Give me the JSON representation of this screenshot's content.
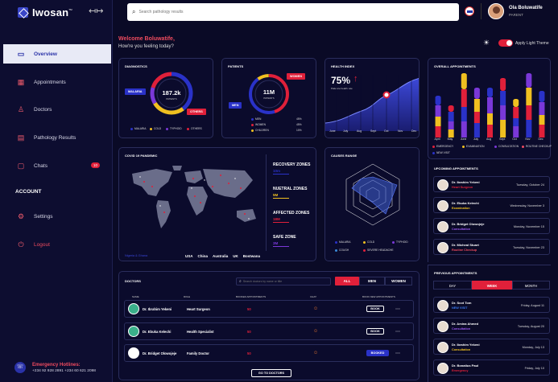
{
  "app": {
    "name": "Iwosan",
    "tm": "TM"
  },
  "nav": {
    "items": [
      {
        "label": "Overview",
        "icon": "overview-icon",
        "glyph": "▭"
      },
      {
        "label": "Appointments",
        "icon": "calendar-icon",
        "glyph": "▦"
      },
      {
        "label": "Doctors",
        "icon": "person-icon",
        "glyph": "♙"
      },
      {
        "label": "Pathology Results",
        "icon": "report-icon",
        "glyph": "▤"
      },
      {
        "label": "Chats",
        "icon": "chat-icon",
        "glyph": "▢",
        "badge": "10"
      }
    ],
    "account_label": "ACCOUNT",
    "settings": "Settings",
    "logout": "Logout"
  },
  "emergency": {
    "title": "Emergency Hotlines:",
    "numbers": "+234 92 928 2891   +234 60 621 2098"
  },
  "search": {
    "placeholder": "Search pathology results"
  },
  "user": {
    "name": "Ola Boluwatife",
    "role": "PARENT"
  },
  "greeting": {
    "welcome": "Welcome Boluwatife,",
    "sub": "How're you feeling today?"
  },
  "theme": {
    "label": "Apply Light Theme"
  },
  "diagnostics": {
    "title": "DIAGNOSTICS",
    "center_value": "187.2k",
    "center_label": "PATIENTS",
    "tag_left": "MALARIA",
    "tag_right": "OTHERS",
    "legend": [
      "MALARIA",
      "COLD",
      "TYPHOID",
      "OTHERS"
    ]
  },
  "patients": {
    "title": "PATIENTS",
    "center_value": "11M",
    "center_label": "PATIENTS",
    "tag_women": "WOMEN",
    "tag_men": "MEN",
    "legend": [
      {
        "label": "MEN",
        "pct": "45%"
      },
      {
        "label": "WOMEN",
        "pct": "45%"
      },
      {
        "label": "CHILDREN",
        "pct": "10%"
      }
    ]
  },
  "health": {
    "title": "HEALTH INDEX",
    "value": "75%",
    "sub": "Patience health rate",
    "months": [
      "June",
      "July",
      "Aug",
      "Sept",
      "Oct",
      "Nov",
      "Dec"
    ]
  },
  "overall": {
    "title": "OVERALL APPOINTMENTS",
    "months": [
      "April",
      "May",
      "June",
      "July",
      "Aug",
      "Sept",
      "Oct",
      "Nov",
      "Dec"
    ],
    "legend": [
      "EMERGENCY",
      "EXAMINATION",
      "CONSULTATION",
      "ROUTINE CHECKUP",
      "NEW VISIT"
    ]
  },
  "covid": {
    "title": "COVID 19 PANDEMIC",
    "stats": [
      {
        "label": "RECOVERY ZONES",
        "value": "10m"
      },
      {
        "label": "NUETRAL ZONES",
        "value": "5M"
      },
      {
        "label": "AFFECTED ZONES",
        "value": "18M"
      },
      {
        "label": "SAFE ZONE",
        "value": "3M"
      }
    ],
    "countries": [
      "USA",
      "China",
      "Australia",
      "UK",
      "Bostwana"
    ],
    "highlight": "Nigeria & Ghana"
  },
  "causes": {
    "title": "CAUSES RANGE",
    "legend": [
      "MALARIA",
      "COLD",
      "TYPHOID",
      "COUGH",
      "SEVERE HEADACHE"
    ]
  },
  "doctors": {
    "title": "DOCTORS",
    "search_placeholder": "Search doctors by name or title",
    "tabs": [
      "ALL",
      "MEN",
      "WOMEN"
    ],
    "headers": [
      "NAME",
      "ROLE",
      "BOOKED APPOINTMENTS",
      "CHAT",
      "BOOK NEW APPOINTMENTS"
    ],
    "rows": [
      {
        "name": "Dr. Ibrahim Yekeni",
        "role": "Heart Surgeon",
        "booked": "50",
        "action": "BOOK"
      },
      {
        "name": "Dr. Ebuka Kelechi",
        "role": "Health Specialist",
        "booked": "50",
        "action": "BOOK"
      },
      {
        "name": "Dr. Bridget Olowojeje",
        "role": "Family Doctor",
        "booked": "50",
        "action": "BOOKED"
      }
    ],
    "go_to": "GO TO DOCTORS"
  },
  "upcoming": {
    "title": "UPCOMING APPOINTMENTS",
    "items": [
      {
        "name": "Dr. Ibrahim Yekeni",
        "spec": "Heart Surgeon",
        "date": "Tuesday, October 24"
      },
      {
        "name": "Dr. Ebuka Kelechi",
        "spec": "Examination",
        "date": "Wednesday, November 3"
      },
      {
        "name": "Dr. Bridget Olowojeje",
        "spec": "Consultation",
        "date": "Monday, November 15"
      },
      {
        "name": "Dr. Micheal Stuart",
        "spec": "Routine Checkup",
        "date": "Tuesday, November 23"
      }
    ]
  },
  "previous": {
    "title": "PREVIOUS APPOINTMENTS",
    "tabs": [
      "DAY",
      "WEEK",
      "MONTH"
    ],
    "items": [
      {
        "name": "Dr. Scot Tom",
        "spec": "NEW VISIT",
        "date": "Friday, August 11"
      },
      {
        "name": "Dr. Amina Ahmed",
        "spec": "Consultation",
        "date": "Tuesday, August 20"
      },
      {
        "name": "Dr. Ibrahim Yekeni",
        "spec": "Consultation",
        "date": "Monday, July 13"
      },
      {
        "name": "Dr. Bonatius Paul",
        "spec": "Emergency",
        "date": "Friday, July 10"
      }
    ]
  },
  "colors": {
    "red": "#e0203a",
    "blue": "#2a32c8",
    "yellow": "#f0c020",
    "purple": "#7a38d8",
    "pink": "#ef4b5f"
  }
}
